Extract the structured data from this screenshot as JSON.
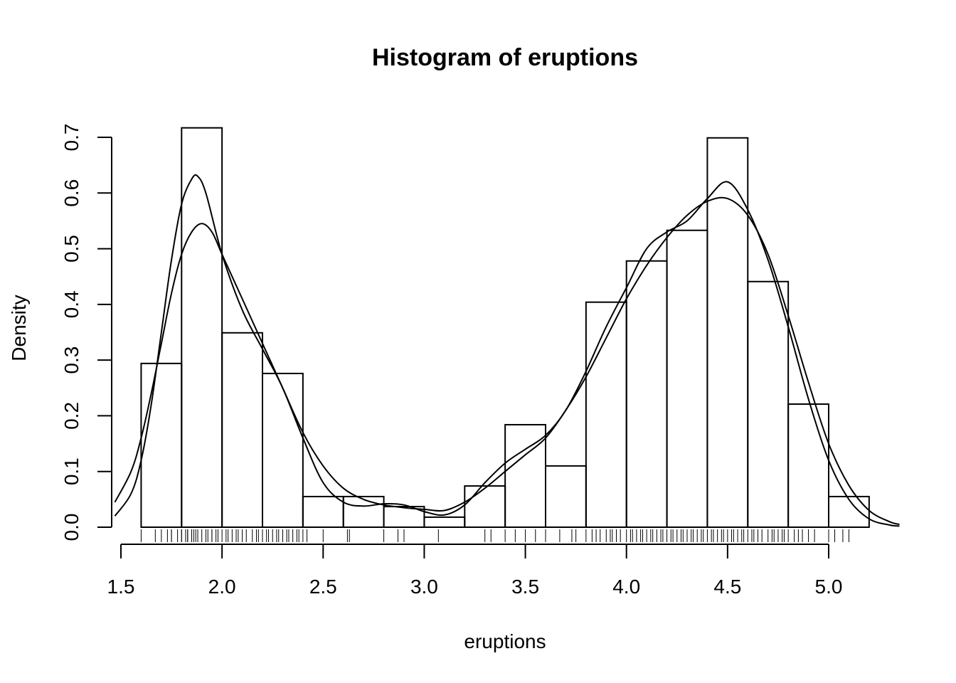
{
  "chart_data": {
    "type": "bar",
    "title": "Histogram of eruptions",
    "xlabel": "eruptions",
    "ylabel": "Density",
    "xlim": [
      1.5,
      5.0
    ],
    "ylim": [
      0.0,
      0.7
    ],
    "x_ticks": [
      "1.5",
      "2.0",
      "2.5",
      "3.0",
      "3.5",
      "4.0",
      "4.5",
      "5.0"
    ],
    "y_ticks": [
      "0.0",
      "0.1",
      "0.2",
      "0.3",
      "0.4",
      "0.5",
      "0.6",
      "0.7"
    ],
    "grid": false,
    "bins": [
      {
        "start": 1.6,
        "end": 1.8,
        "density": 0.294
      },
      {
        "start": 1.8,
        "end": 2.0,
        "density": 0.717
      },
      {
        "start": 2.0,
        "end": 2.2,
        "density": 0.349
      },
      {
        "start": 2.2,
        "end": 2.4,
        "density": 0.276
      },
      {
        "start": 2.4,
        "end": 2.6,
        "density": 0.055
      },
      {
        "start": 2.6,
        "end": 2.8,
        "density": 0.055
      },
      {
        "start": 2.8,
        "end": 3.0,
        "density": 0.037
      },
      {
        "start": 3.0,
        "end": 3.2,
        "density": 0.018
      },
      {
        "start": 3.2,
        "end": 3.4,
        "density": 0.074
      },
      {
        "start": 3.4,
        "end": 3.6,
        "density": 0.184
      },
      {
        "start": 3.6,
        "end": 3.8,
        "density": 0.11
      },
      {
        "start": 3.8,
        "end": 4.0,
        "density": 0.404
      },
      {
        "start": 4.0,
        "end": 4.2,
        "density": 0.478
      },
      {
        "start": 4.2,
        "end": 4.4,
        "density": 0.533
      },
      {
        "start": 4.4,
        "end": 4.6,
        "density": 0.699
      },
      {
        "start": 4.6,
        "end": 4.8,
        "density": 0.441
      },
      {
        "start": 4.8,
        "end": 5.0,
        "density": 0.221
      },
      {
        "start": 5.0,
        "end": 5.2,
        "density": 0.055
      }
    ],
    "density_curves": [
      {
        "x": [
          1.47,
          1.55,
          1.6,
          1.65,
          1.7,
          1.75,
          1.8,
          1.85,
          1.88,
          1.92,
          2.0,
          2.1,
          2.2,
          2.3,
          2.4,
          2.5,
          2.6,
          2.7,
          2.8,
          2.9,
          3.0,
          3.1,
          3.2,
          3.3,
          3.4,
          3.5,
          3.6,
          3.7,
          3.8,
          3.9,
          4.0,
          4.1,
          4.2,
          4.3,
          4.4,
          4.5,
          4.6,
          4.7,
          4.8,
          4.9,
          5.0,
          5.1,
          5.2,
          5.3,
          5.35
        ],
        "y": [
          0.02,
          0.06,
          0.12,
          0.22,
          0.35,
          0.48,
          0.58,
          0.625,
          0.63,
          0.6,
          0.49,
          0.39,
          0.32,
          0.25,
          0.16,
          0.08,
          0.045,
          0.038,
          0.042,
          0.04,
          0.028,
          0.022,
          0.04,
          0.08,
          0.115,
          0.14,
          0.165,
          0.21,
          0.28,
          0.36,
          0.43,
          0.5,
          0.53,
          0.55,
          0.59,
          0.62,
          0.57,
          0.48,
          0.36,
          0.23,
          0.12,
          0.05,
          0.015,
          0.004,
          0.002
        ]
      },
      {
        "x": [
          1.47,
          1.55,
          1.6,
          1.65,
          1.7,
          1.75,
          1.8,
          1.85,
          1.9,
          1.95,
          2.0,
          2.1,
          2.2,
          2.3,
          2.4,
          2.5,
          2.6,
          2.7,
          2.8,
          2.9,
          3.0,
          3.1,
          3.2,
          3.3,
          3.4,
          3.5,
          3.6,
          3.7,
          3.8,
          3.9,
          4.0,
          4.1,
          4.2,
          4.3,
          4.4,
          4.5,
          4.6,
          4.7,
          4.8,
          4.9,
          5.0,
          5.1,
          5.2,
          5.3,
          5.35
        ],
        "y": [
          0.045,
          0.1,
          0.16,
          0.24,
          0.33,
          0.42,
          0.49,
          0.53,
          0.545,
          0.53,
          0.49,
          0.41,
          0.33,
          0.25,
          0.17,
          0.11,
          0.07,
          0.05,
          0.04,
          0.035,
          0.032,
          0.03,
          0.045,
          0.07,
          0.1,
          0.13,
          0.16,
          0.21,
          0.27,
          0.34,
          0.41,
          0.47,
          0.52,
          0.56,
          0.585,
          0.59,
          0.56,
          0.49,
          0.38,
          0.26,
          0.15,
          0.075,
          0.03,
          0.01,
          0.005
        ]
      }
    ],
    "rug_values": [
      1.6,
      1.67,
      1.7,
      1.73,
      1.75,
      1.75,
      1.78,
      1.8,
      1.8,
      1.82,
      1.83,
      1.83,
      1.85,
      1.85,
      1.86,
      1.87,
      1.88,
      1.9,
      1.92,
      1.93,
      1.95,
      1.95,
      1.97,
      1.98,
      2.0,
      2.02,
      2.03,
      2.05,
      2.07,
      2.08,
      2.1,
      2.12,
      2.15,
      2.17,
      2.18,
      2.2,
      2.22,
      2.23,
      2.25,
      2.27,
      2.28,
      2.3,
      2.32,
      2.33,
      2.35,
      2.37,
      2.38,
      2.4,
      2.42,
      2.5,
      2.62,
      2.63,
      2.8,
      2.87,
      2.9,
      3.07,
      3.3,
      3.33,
      3.4,
      3.45,
      3.5,
      3.55,
      3.6,
      3.67,
      3.73,
      3.75,
      3.8,
      3.83,
      3.85,
      3.87,
      3.9,
      3.92,
      3.93,
      3.95,
      3.97,
      4.0,
      4.02,
      4.03,
      4.05,
      4.07,
      4.08,
      4.1,
      4.12,
      4.13,
      4.15,
      4.17,
      4.18,
      4.2,
      4.22,
      4.23,
      4.25,
      4.27,
      4.28,
      4.3,
      4.32,
      4.33,
      4.35,
      4.37,
      4.38,
      4.4,
      4.42,
      4.43,
      4.45,
      4.47,
      4.48,
      4.5,
      4.52,
      4.53,
      4.55,
      4.57,
      4.58,
      4.6,
      4.62,
      4.63,
      4.65,
      4.67,
      4.7,
      4.72,
      4.73,
      4.75,
      4.77,
      4.78,
      4.8,
      4.83,
      4.85,
      4.87,
      4.9,
      4.93,
      5.0,
      5.03,
      5.07,
      5.1
    ]
  }
}
